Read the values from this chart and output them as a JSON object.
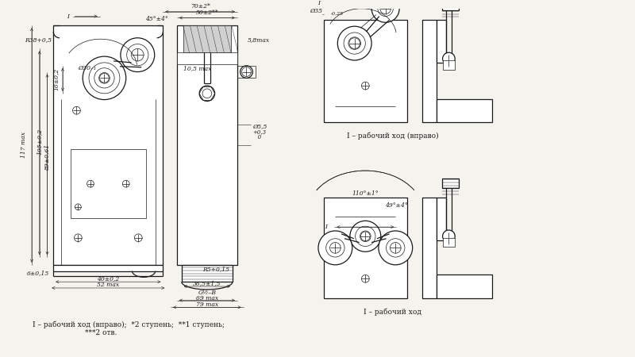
{
  "background_color": "#f5f3ee",
  "line_color": "#1a1a1a",
  "lw": 0.9,
  "tlw": 0.5,
  "dlw": 0.4,
  "fs": 6.0,
  "dfs": 5.5,
  "caption_left": "I – рабочий ход (вправо);  *2 ступень;  **1 ступень;",
  "caption_left2": "***2 отв.",
  "caption_tr": "I – рабочий ход (вправо)",
  "caption_br": "I – рабочий ход"
}
